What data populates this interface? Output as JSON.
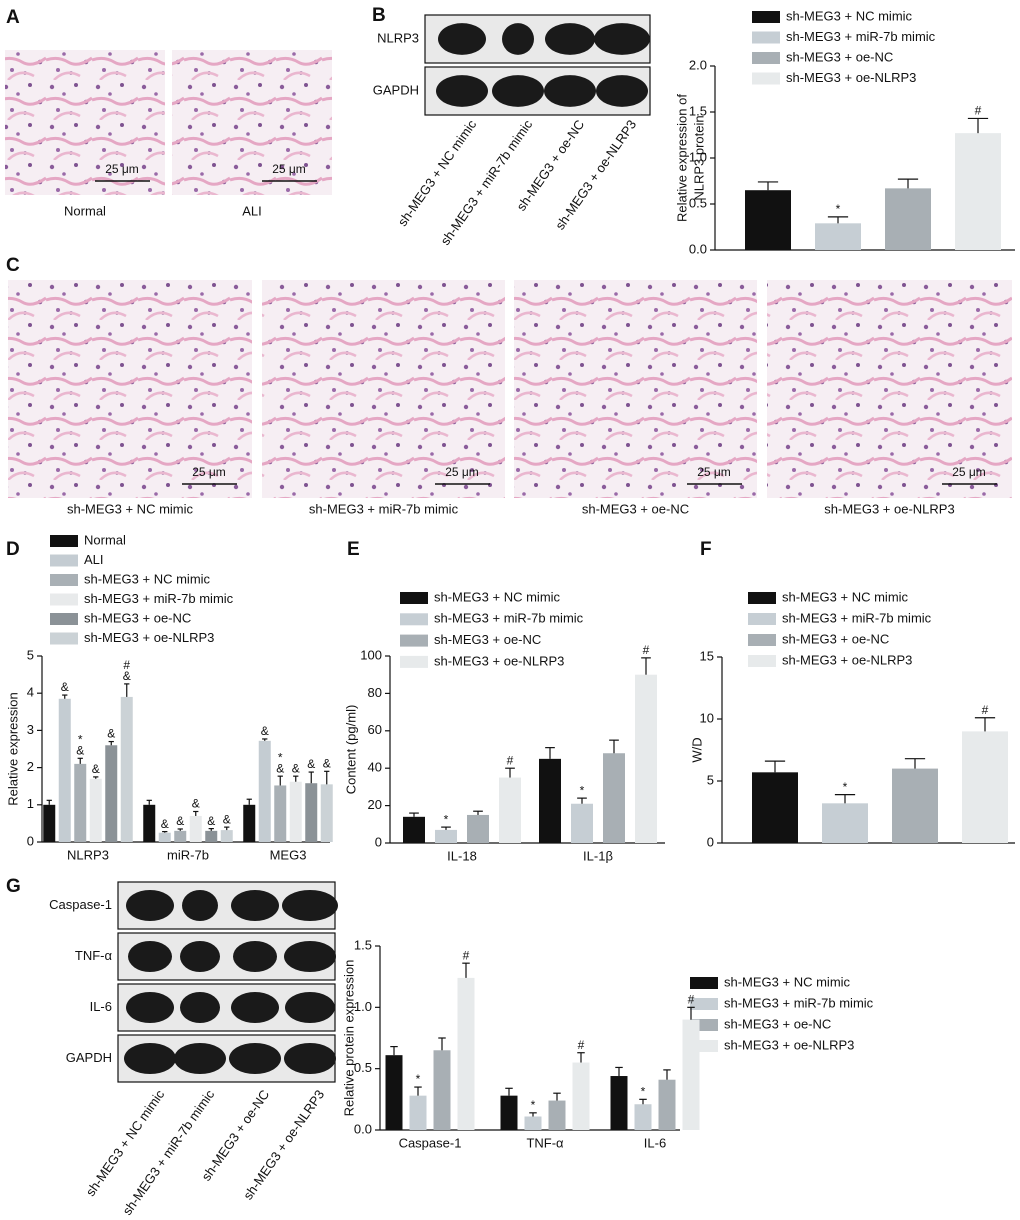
{
  "panel_labels": {
    "a": "A",
    "b": "B",
    "c": "C",
    "d": "D",
    "e": "E",
    "f": "F",
    "g": "G"
  },
  "panel_a": {
    "images": [
      "Normal",
      "ALI"
    ],
    "scale_bar": "25 μm"
  },
  "panel_b_blot": {
    "bands": [
      "NLRP3",
      "GAPDH"
    ],
    "lanes": [
      "sh-MEG3 + NC mimic",
      "sh-MEG3 + miR-7b mimic",
      "sh-MEG3 + oe-NC",
      "sh-MEG3 + oe-NLRP3"
    ]
  },
  "panel_c": {
    "images": [
      "sh-MEG3 + NC mimic",
      "sh-MEG3 + miR-7b mimic",
      "sh-MEG3 + oe-NC",
      "sh-MEG3 + oe-NLRP3"
    ],
    "scale_bar": "25 μm"
  },
  "panel_g_blot": {
    "bands": [
      "Caspase-1",
      "TNF-α",
      "IL-6",
      "GAPDH"
    ],
    "lanes": [
      "sh-MEG3 + NC mimic",
      "sh-MEG3 + miR-7b mimic",
      "sh-MEG3 + oe-NC",
      "sh-MEG3 + oe-NLRP3"
    ]
  },
  "chart_data": [
    {
      "type": "bar",
      "ylabel": [
        "Relative expression of",
        "NLRP3 protein"
      ],
      "ylim": [
        0,
        2
      ],
      "yticks": [
        {
          "value": 0,
          "label": "0.0"
        },
        0.5,
        {
          "value": 1,
          "label": "1.0"
        },
        1.5,
        {
          "value": 2,
          "label": "2.0"
        }
      ],
      "series": [
        {
          "name": "sh-MEG3 + NC mimic",
          "color": "#111111",
          "values": [
            0.65
          ],
          "errors": [
            0.09
          ],
          "annotations": [
            null
          ]
        },
        {
          "name": "sh-MEG3 + miR-7b mimic",
          "color": "#c6ced4",
          "values": [
            0.29
          ],
          "errors": [
            0.07
          ],
          "annotations": [
            [
              "*"
            ]
          ]
        },
        {
          "name": "sh-MEG3 + oe-NC",
          "color": "#a8afb4",
          "values": [
            0.67
          ],
          "errors": [
            0.1
          ],
          "annotations": [
            null
          ]
        },
        {
          "name": "sh-MEG3 + oe-NLRP3",
          "color": "#e7eaeb",
          "values": [
            1.27
          ],
          "errors": [
            0.16
          ],
          "annotations": [
            [
              "#"
            ]
          ]
        }
      ]
    },
    {
      "type": "bar",
      "ylabel": "Relative expression",
      "categories": [
        "NLRP3",
        "miR-7b",
        "MEG3"
      ],
      "ylim": [
        0,
        5
      ],
      "yticks": [
        0,
        1,
        2,
        3,
        4,
        5
      ],
      "series": [
        {
          "name": "Normal",
          "color": "#111111",
          "values": [
            1.0,
            1.0,
            1.0
          ],
          "errors": [
            0.12,
            0.12,
            0.15
          ],
          "annotations": [
            null,
            null,
            null
          ]
        },
        {
          "name": "ALI",
          "color": "#c4ccd2",
          "values": [
            3.85,
            0.25,
            2.72
          ],
          "errors": [
            0.1,
            0.03,
            0.05
          ],
          "annotations": [
            [
              "&"
            ],
            [
              "&"
            ],
            [
              "&"
            ]
          ]
        },
        {
          "name": "sh-MEG3 + NC mimic",
          "color": "#a9b0b5",
          "values": [
            2.1,
            0.3,
            1.52
          ],
          "errors": [
            0.15,
            0.05,
            0.25
          ],
          "annotations": [
            [
              "*",
              "&"
            ],
            [
              "&"
            ],
            [
              "*",
              "&"
            ]
          ]
        },
        {
          "name": "sh-MEG3 + miR-7b mimic",
          "color": "#e8eaeb",
          "values": [
            1.7,
            0.7,
            1.62
          ],
          "errors": [
            0.05,
            0.12,
            0.15
          ],
          "annotations": [
            [
              "&"
            ],
            [
              "&"
            ],
            [
              "&"
            ]
          ]
        },
        {
          "name": "sh-MEG3 + oe-NC",
          "color": "#8b9297",
          "values": [
            2.6,
            0.3,
            1.58
          ],
          "errors": [
            0.1,
            0.06,
            0.3
          ],
          "annotations": [
            [
              "&"
            ],
            [
              "&"
            ],
            [
              "&"
            ]
          ]
        },
        {
          "name": "sh-MEG3 + oe-NLRP3",
          "color": "#cbd2d6",
          "values": [
            3.9,
            0.32,
            1.55
          ],
          "errors": [
            0.35,
            0.08,
            0.35
          ],
          "annotations": [
            [
              "#",
              "&"
            ],
            [
              "&"
            ],
            [
              "&"
            ]
          ]
        }
      ]
    },
    {
      "type": "bar",
      "ylabel": "Content (pg/ml)",
      "categories": [
        "IL-18",
        "IL-1β"
      ],
      "ylim": [
        0,
        100
      ],
      "yticks": [
        0,
        20,
        40,
        60,
        80,
        100
      ],
      "series": [
        {
          "name": "sh-MEG3 + NC mimic",
          "color": "#111111",
          "values": [
            14,
            45
          ],
          "errors": [
            2,
            6
          ],
          "annotations": [
            null,
            null
          ]
        },
        {
          "name": "sh-MEG3 + miR-7b mimic",
          "color": "#c6ced4",
          "values": [
            7,
            21
          ],
          "errors": [
            1.5,
            3
          ],
          "annotations": [
            [
              "*"
            ],
            [
              "*"
            ]
          ]
        },
        {
          "name": "sh-MEG3 + oe-NC",
          "color": "#a8afb4",
          "values": [
            15,
            48
          ],
          "errors": [
            2,
            7
          ],
          "annotations": [
            null,
            null
          ]
        },
        {
          "name": "sh-MEG3 + oe-NLRP3",
          "color": "#e7eaeb",
          "values": [
            35,
            90
          ],
          "errors": [
            5,
            9
          ],
          "annotations": [
            [
              "#"
            ],
            [
              "#"
            ]
          ]
        }
      ]
    },
    {
      "type": "bar",
      "ylabel": "W/D",
      "ylim": [
        0,
        15
      ],
      "yticks": [
        0,
        5,
        10,
        15
      ],
      "series": [
        {
          "name": "sh-MEG3 + NC mimic",
          "color": "#111111",
          "values": [
            5.7
          ],
          "errors": [
            0.9
          ],
          "annotations": [
            null
          ]
        },
        {
          "name": "sh-MEG3 + miR-7b mimic",
          "color": "#c6ced4",
          "values": [
            3.2
          ],
          "errors": [
            0.7
          ],
          "annotations": [
            [
              "*"
            ]
          ]
        },
        {
          "name": "sh-MEG3 + oe-NC",
          "color": "#a8afb4",
          "values": [
            6.0
          ],
          "errors": [
            0.8
          ],
          "annotations": [
            null
          ]
        },
        {
          "name": "sh-MEG3 + oe-NLRP3",
          "color": "#e7eaeb",
          "values": [
            9.0
          ],
          "errors": [
            1.1
          ],
          "annotations": [
            [
              "#"
            ]
          ]
        }
      ]
    },
    {
      "type": "bar",
      "ylabel": "Relative protein expression",
      "categories": [
        "Caspase-1",
        "TNF-α",
        "IL-6"
      ],
      "ylim": [
        0,
        1.5
      ],
      "yticks": [
        {
          "value": 0,
          "label": "0.0"
        },
        0.5,
        {
          "value": 1,
          "label": "1.0"
        },
        1.5
      ],
      "series": [
        {
          "name": "sh-MEG3 + NC mimic",
          "color": "#111111",
          "values": [
            0.61,
            0.28,
            0.44
          ],
          "errors": [
            0.07,
            0.06,
            0.07
          ],
          "annotations": [
            null,
            null,
            null
          ]
        },
        {
          "name": "sh-MEG3 + miR-7b mimic",
          "color": "#c6ced4",
          "values": [
            0.28,
            0.11,
            0.21
          ],
          "errors": [
            0.07,
            0.03,
            0.04
          ],
          "annotations": [
            [
              "*"
            ],
            [
              "*"
            ],
            [
              "*"
            ]
          ]
        },
        {
          "name": "sh-MEG3 + oe-NC",
          "color": "#a8afb4",
          "values": [
            0.65,
            0.24,
            0.41
          ],
          "errors": [
            0.1,
            0.06,
            0.08
          ],
          "annotations": [
            null,
            null,
            null
          ]
        },
        {
          "name": "sh-MEG3 + oe-NLRP3",
          "color": "#e7eaeb",
          "values": [
            1.24,
            0.55,
            0.9
          ],
          "errors": [
            0.12,
            0.08,
            0.1
          ],
          "annotations": [
            [
              "#"
            ],
            [
              "#"
            ],
            [
              "#"
            ]
          ]
        }
      ]
    }
  ]
}
